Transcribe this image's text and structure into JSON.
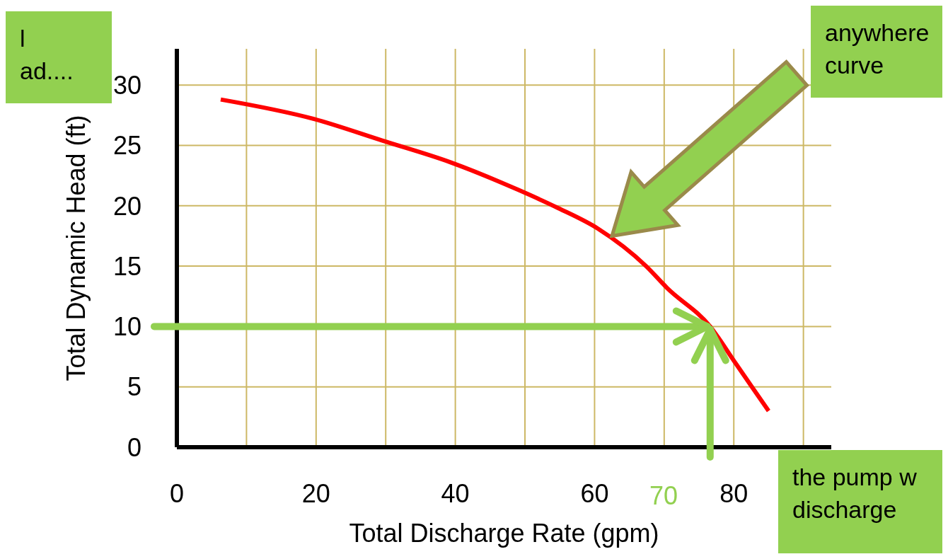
{
  "chart_data": {
    "type": "line",
    "xlabel": "Total Discharge Rate (gpm)",
    "ylabel": "Total Dynamic Head (ft)",
    "x": [
      6.3,
      19.6,
      29.5,
      39.3,
      49.1,
      54.8,
      60.5,
      67.4,
      70.4,
      76.6,
      80.2,
      85
    ],
    "series": [
      {
        "color": "#ff0000",
        "values": [
          28.8,
          27.2,
          25.4,
          23.6,
          21.3,
          19.8,
          18.1,
          15,
          13.2,
          10,
          7,
          3
        ]
      }
    ],
    "ref_lines": [
      {
        "axis": "y",
        "value": 10,
        "color": "#92d050"
      },
      {
        "axis": "x",
        "value": 76.6,
        "color": "#92d050"
      }
    ],
    "xlim": [
      0,
      94
    ],
    "ylim": [
      0,
      33
    ],
    "xticks": [
      0,
      {
        "value": 10,
        "label": null
      },
      20,
      {
        "value": 30,
        "label": null
      },
      40,
      {
        "value": 50,
        "label": null
      },
      60,
      {
        "value": 70,
        "label": null
      },
      80,
      {
        "value": 90,
        "label": null
      }
    ],
    "yticks": [
      0,
      5,
      10,
      15,
      20,
      25,
      30
    ],
    "grid": true,
    "marker": "none",
    "line_style": "solid",
    "annotations": [
      "l\nad....",
      "anywhere\ncurve",
      "the pump w\ndischarge",
      "70"
    ]
  }
}
